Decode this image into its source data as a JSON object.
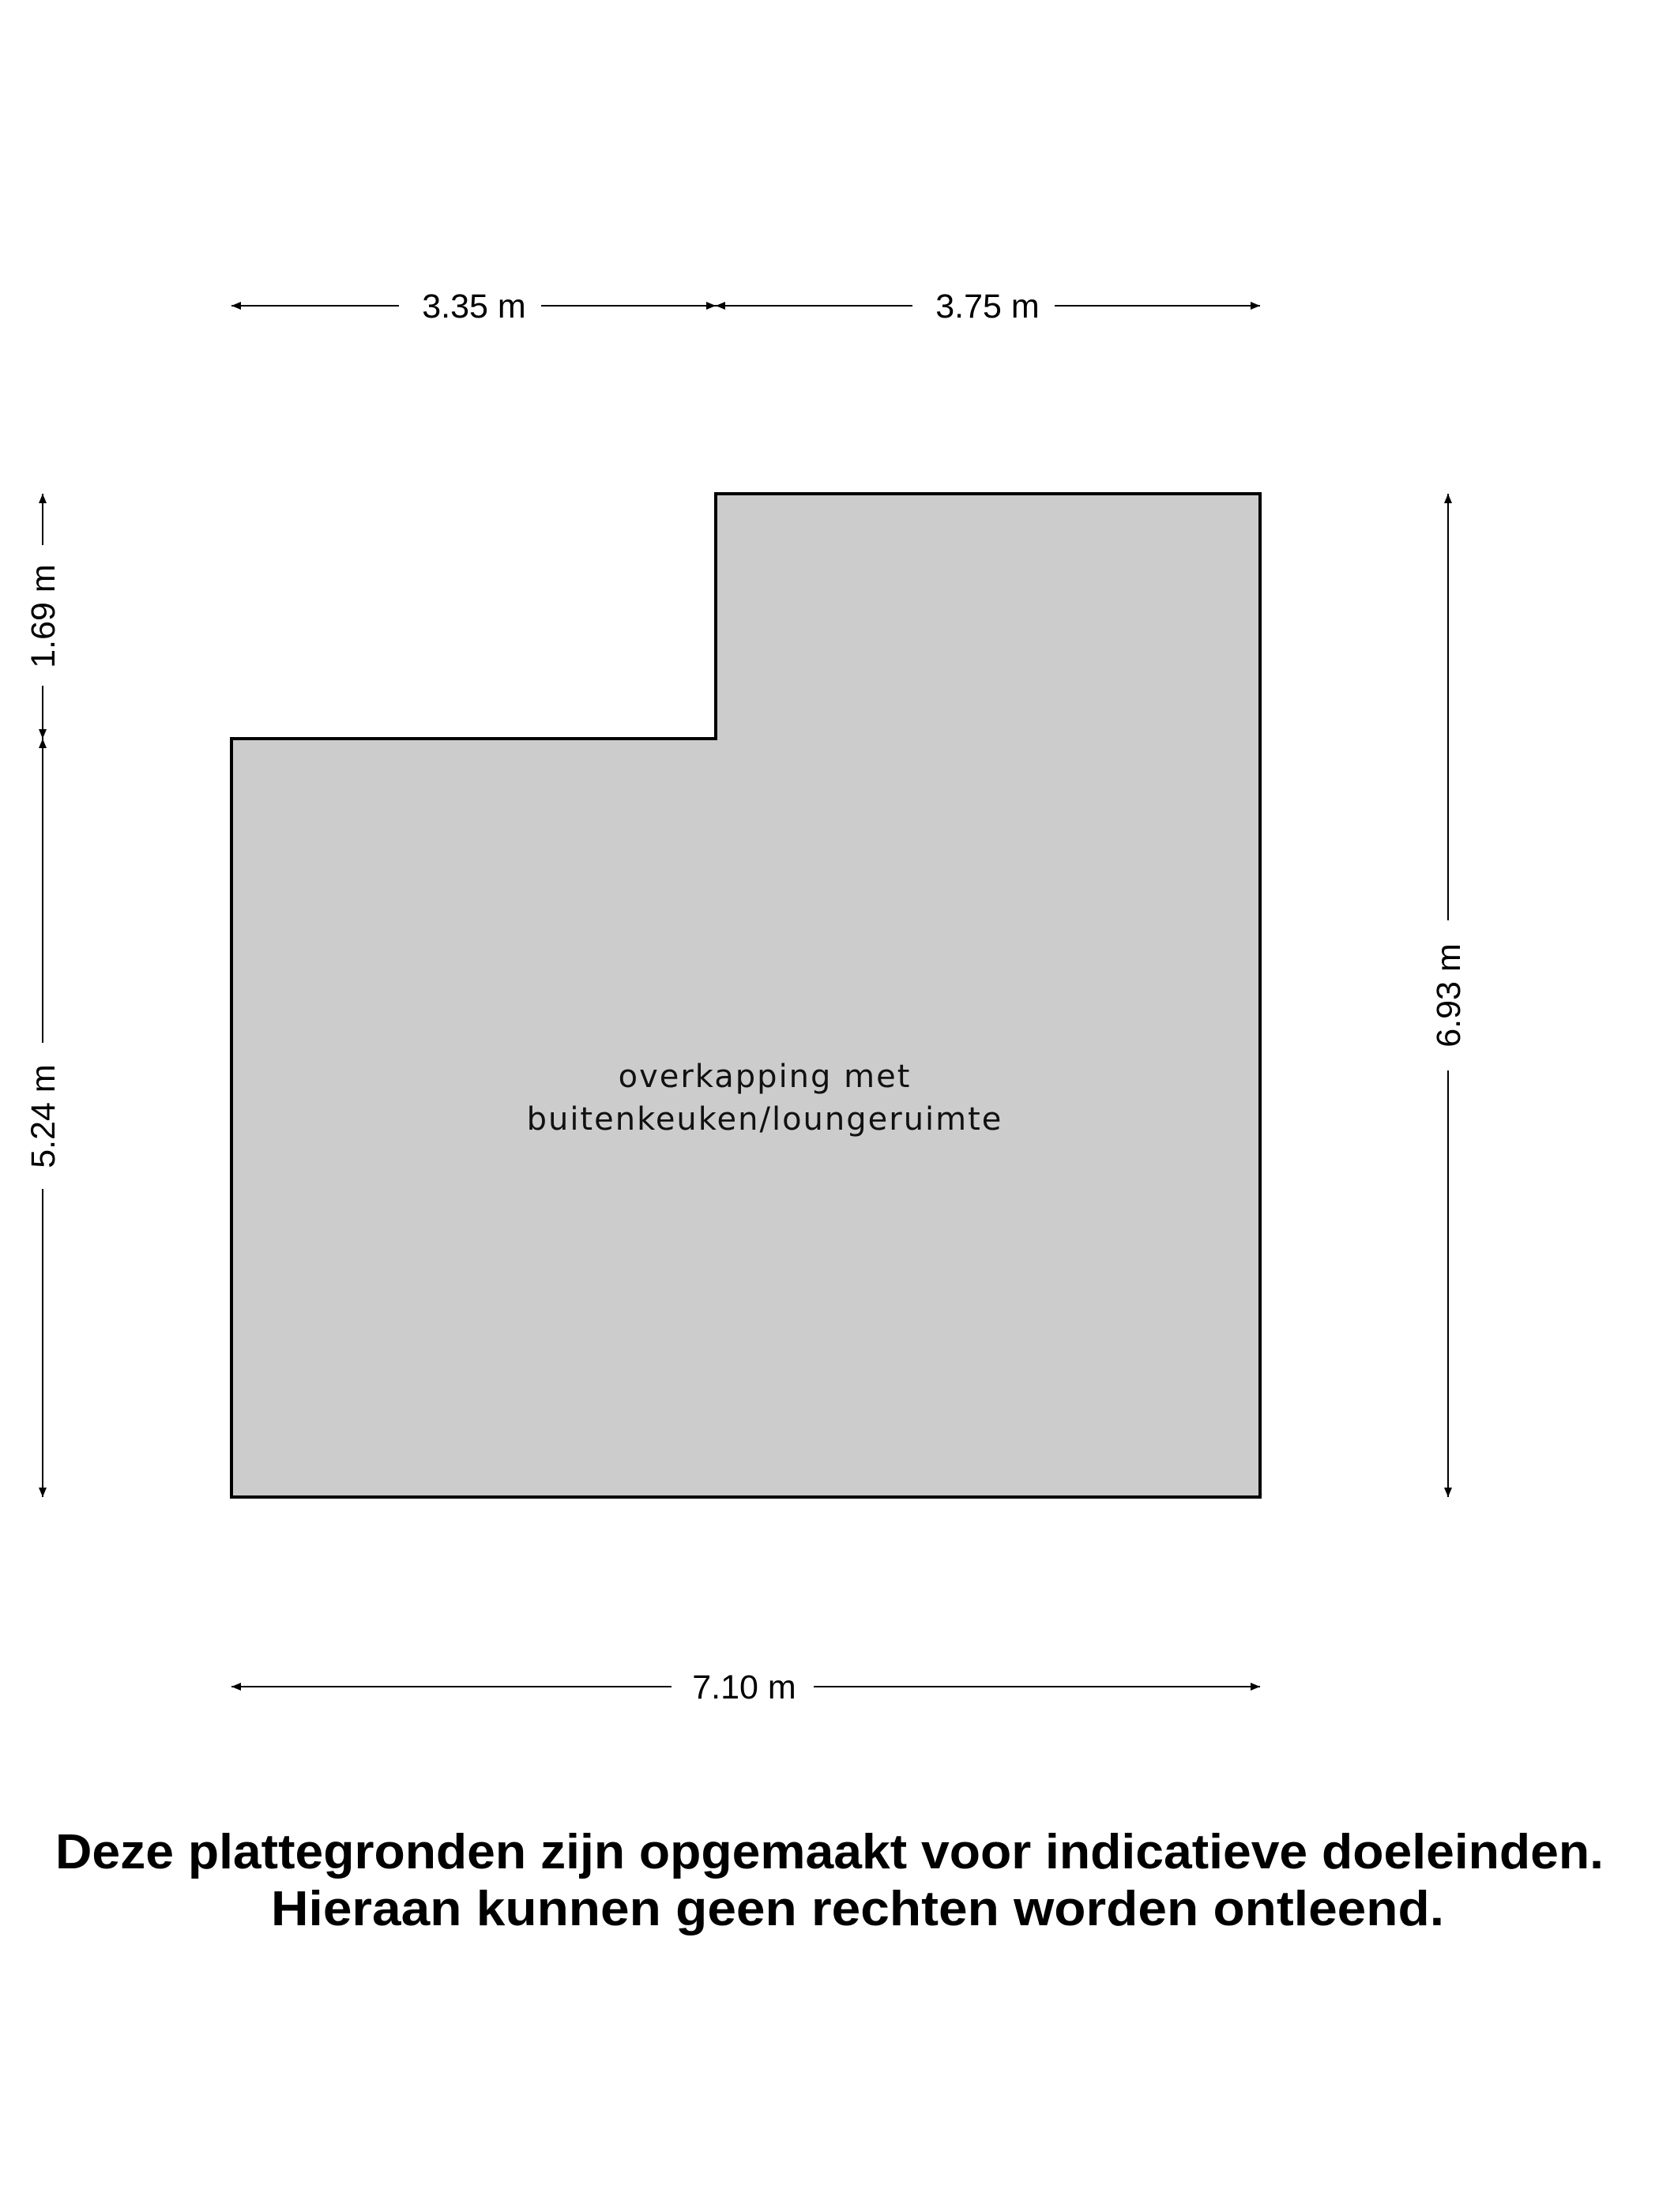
{
  "floorplan": {
    "room_label_line1": "overkapping met",
    "room_label_line2": "buitenkeuken/loungeruimte",
    "room_fill": "#cccccc",
    "wall_color": "#000000",
    "dimensions": {
      "top_left": "3.35 m",
      "top_right": "3.75 m",
      "bottom": "7.10 m",
      "left_top": "1.69 m",
      "left_bottom": "5.24 m",
      "right": "6.93 m"
    }
  },
  "disclaimer": {
    "line1": "Deze plattegronden zijn opgemaakt voor indicatieve doeleinden.",
    "line2": "Hieraan kunnen geen rechten worden ontleend."
  }
}
